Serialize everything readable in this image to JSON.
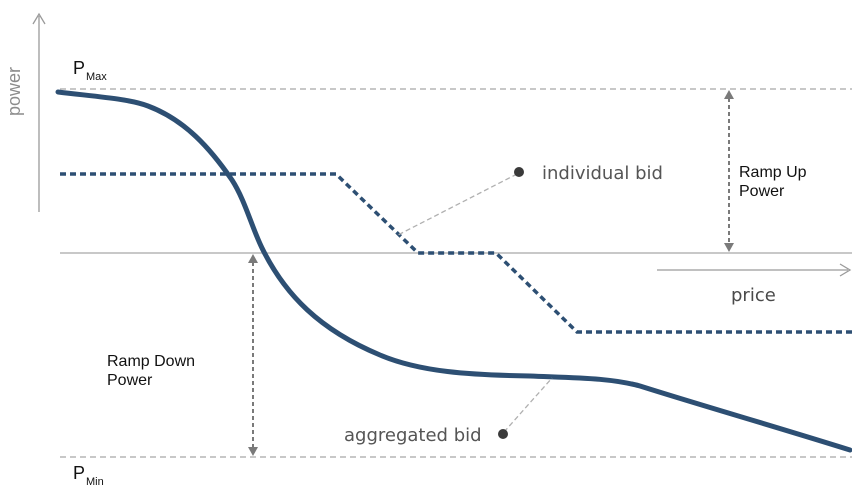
{
  "axis_labels": {
    "y": "power",
    "x": "price"
  },
  "limits": {
    "pmax_main": "P",
    "pmax_sub": "Max",
    "pmin_main": "P",
    "pmin_sub": "Min"
  },
  "annotations": {
    "individual_bid": "individual bid",
    "aggregated_bid": "aggregated bid",
    "ramp_up_power": "Ramp Up Power",
    "ramp_down_power": "Ramp Down Power"
  },
  "colors": {
    "curve": "#2d4f73",
    "reference_lines": "#a6a6a6",
    "arrows": "#7a7a7a",
    "marker": "#3a3a3a"
  }
}
